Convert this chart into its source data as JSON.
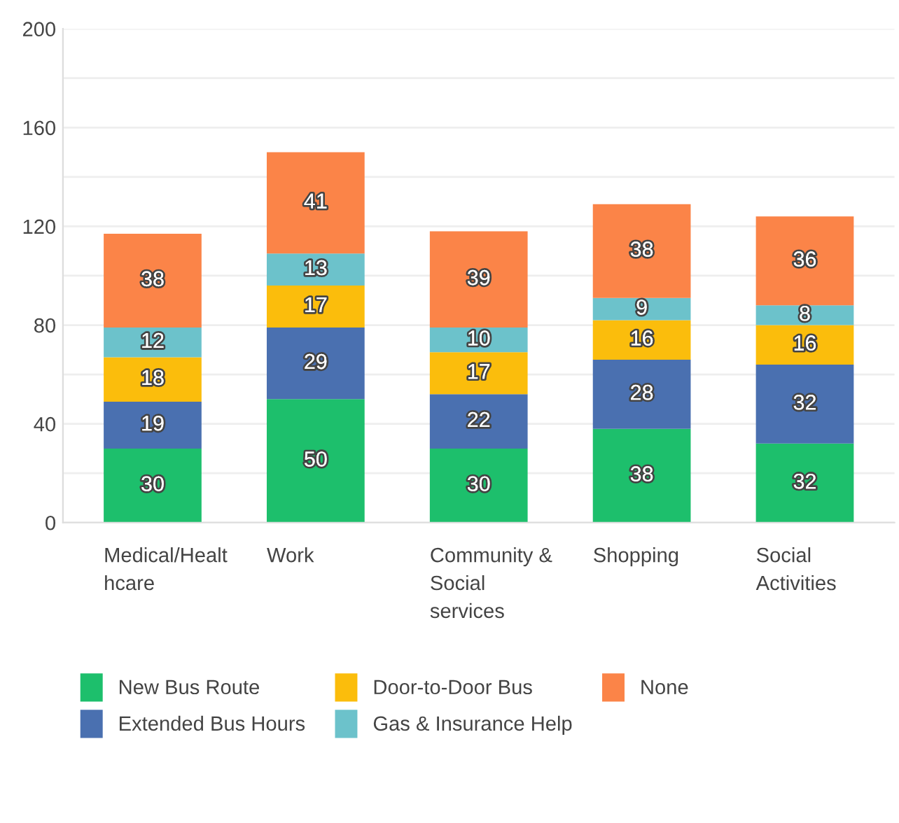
{
  "chart_data": {
    "type": "bar",
    "stacked": true,
    "data_labels": true,
    "categories": [
      "Medical/Healthcare",
      "Work",
      "Community & Social services",
      "Shopping",
      "Social Activities"
    ],
    "series": [
      {
        "name": "New Bus Route",
        "color": "#1dbf6c",
        "values": [
          30,
          50,
          30,
          38,
          32
        ]
      },
      {
        "name": "Extended Bus Hours",
        "color": "#4a70b0",
        "values": [
          19,
          29,
          22,
          28,
          32
        ]
      },
      {
        "name": "Door-to-Door Bus",
        "color": "#fbbd0c",
        "values": [
          18,
          17,
          17,
          16,
          16
        ]
      },
      {
        "name": "Gas & Insurance Help",
        "color": "#6cc2cb",
        "values": [
          12,
          13,
          10,
          9,
          8
        ]
      },
      {
        "name": "None",
        "color": "#fb8448",
        "values": [
          38,
          41,
          39,
          38,
          36
        ]
      }
    ],
    "ylim": [
      0,
      200
    ],
    "yticks": [
      0,
      {
        "value": 20,
        "label": null
      },
      40,
      {
        "value": 60,
        "label": null
      },
      80,
      {
        "value": 100,
        "label": null
      },
      120,
      {
        "value": 140,
        "label": null
      },
      160,
      {
        "value": 180,
        "label": null
      },
      200
    ],
    "grid": "y",
    "legend": "bottom"
  }
}
